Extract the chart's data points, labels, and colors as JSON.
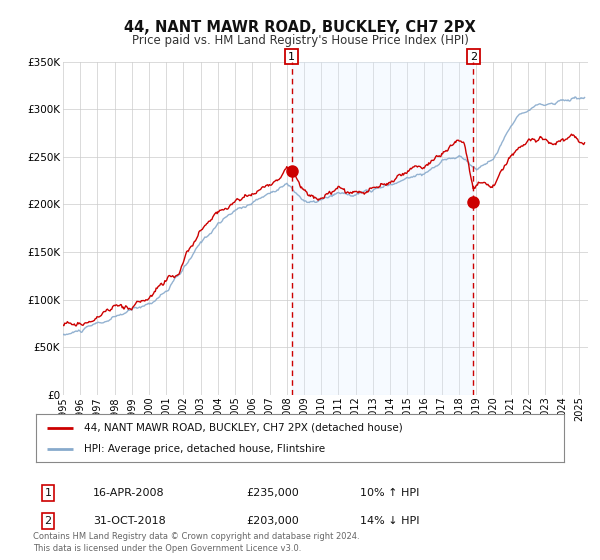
{
  "title": "44, NANT MAWR ROAD, BUCKLEY, CH7 2PX",
  "subtitle": "Price paid vs. HM Land Registry's House Price Index (HPI)",
  "fig_bg_color": "#ffffff",
  "plot_bg_color": "#ffffff",
  "span_color": "#ddeeff",
  "grid_color": "#cccccc",
  "hpi_color": "#88aacc",
  "price_color": "#cc0000",
  "ylim": [
    0,
    350000
  ],
  "yticks": [
    0,
    50000,
    100000,
    150000,
    200000,
    250000,
    300000,
    350000
  ],
  "ytick_labels": [
    "£0",
    "£50K",
    "£100K",
    "£150K",
    "£200K",
    "£250K",
    "£300K",
    "£350K"
  ],
  "xlim_start": 1995.0,
  "xlim_end": 2025.5,
  "event1_x": 2008.29,
  "event1_y": 235000,
  "event1_label": "1",
  "event2_x": 2018.83,
  "event2_y": 203000,
  "event2_label": "2",
  "legend_line1": "44, NANT MAWR ROAD, BUCKLEY, CH7 2PX (detached house)",
  "legend_line2": "HPI: Average price, detached house, Flintshire",
  "table_row1_num": "1",
  "table_row1_date": "16-APR-2008",
  "table_row1_price": "£235,000",
  "table_row1_hpi": "10% ↑ HPI",
  "table_row2_num": "2",
  "table_row2_date": "31-OCT-2018",
  "table_row2_price": "£203,000",
  "table_row2_hpi": "14% ↓ HPI",
  "footer": "Contains HM Land Registry data © Crown copyright and database right 2024.\nThis data is licensed under the Open Government Licence v3.0."
}
